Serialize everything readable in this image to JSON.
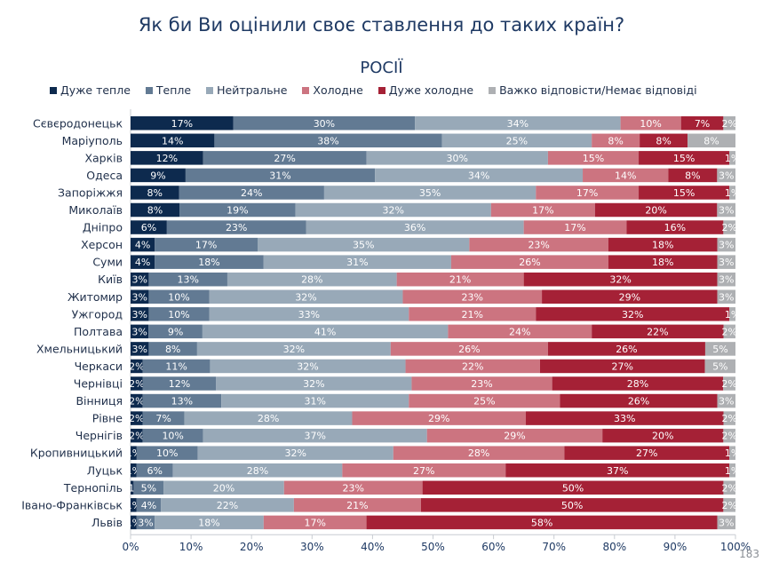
{
  "page_title": "Як би Ви оцінили своє ставлення до таких країн?",
  "page_number": "183",
  "chart_data": {
    "type": "bar",
    "orientation": "horizontal",
    "stacked": true,
    "title": "РОСІЇ",
    "xlim": [
      0,
      100
    ],
    "x_ticks": [
      "0%",
      "10%",
      "20%",
      "30%",
      "40%",
      "50%",
      "60%",
      "70%",
      "80%",
      "90%",
      "100%"
    ],
    "legend_position": "top",
    "series": [
      {
        "name": "Дуже тепле",
        "color": "#0d2a4e"
      },
      {
        "name": "Тепле",
        "color": "#627a93"
      },
      {
        "name": "Нейтральне",
        "color": "#98a9b8"
      },
      {
        "name": "Холодне",
        "color": "#cc7480"
      },
      {
        "name": "Дуже холодне",
        "color": "#a52136"
      },
      {
        "name": "Важко відповісти/Немає відповіді",
        "color": "#aeb0b3"
      }
    ],
    "categories": [
      "Сєвєродонецьк",
      "Маріуполь",
      "Харків",
      "Одеса",
      "Запоріжжя",
      "Миколаїв",
      "Дніпро",
      "Херсон",
      "Суми",
      "Київ",
      "Житомир",
      "Ужгород",
      "Полтава",
      "Хмельницький",
      "Черкаси",
      "Чернівці",
      "Вінниця",
      "Рівне",
      "Чернігів",
      "Кропивницький",
      "Луцьк",
      "Тернопіль",
      "Івано-Франківськ",
      "Львів"
    ],
    "values": [
      [
        17,
        30,
        34,
        10,
        7,
        2
      ],
      [
        14,
        38,
        25,
        8,
        8,
        8
      ],
      [
        12,
        27,
        30,
        15,
        15,
        1
      ],
      [
        9,
        31,
        34,
        14,
        8,
        3
      ],
      [
        8,
        24,
        35,
        17,
        15,
        1
      ],
      [
        8,
        19,
        32,
        17,
        20,
        3
      ],
      [
        6,
        23,
        36,
        17,
        16,
        2
      ],
      [
        4,
        17,
        35,
        23,
        18,
        3
      ],
      [
        4,
        18,
        31,
        26,
        18,
        3
      ],
      [
        3,
        13,
        28,
        21,
        32,
        3
      ],
      [
        3,
        10,
        32,
        23,
        29,
        3
      ],
      [
        3,
        10,
        33,
        21,
        32,
        1
      ],
      [
        3,
        9,
        41,
        24,
        22,
        2
      ],
      [
        3,
        8,
        32,
        26,
        26,
        5
      ],
      [
        2,
        11,
        32,
        22,
        27,
        5
      ],
      [
        2,
        12,
        32,
        23,
        28,
        2
      ],
      [
        2,
        13,
        31,
        25,
        26,
        3
      ],
      [
        2,
        7,
        28,
        29,
        33,
        2
      ],
      [
        2,
        10,
        37,
        29,
        20,
        2
      ],
      [
        1,
        10,
        32,
        28,
        27,
        1
      ],
      [
        1,
        6,
        28,
        27,
        37,
        1
      ],
      [
        0.5,
        5,
        20,
        23,
        50,
        2
      ],
      [
        1,
        4,
        22,
        21,
        50,
        2
      ],
      [
        1,
        3,
        18,
        17,
        58,
        3
      ]
    ],
    "labels": [
      [
        "17%",
        "30%",
        "34%",
        "10%",
        "7%",
        "2%"
      ],
      [
        "14%",
        "38%",
        "25%",
        "8%",
        "8%",
        "8%"
      ],
      [
        "12%",
        "27%",
        "30%",
        "15%",
        "15%",
        "1%"
      ],
      [
        "9%",
        "31%",
        "34%",
        "14%",
        "8%",
        "3%"
      ],
      [
        "8%",
        "24%",
        "35%",
        "17%",
        "15%",
        "1%"
      ],
      [
        "8%",
        "19%",
        "32%",
        "17%",
        "20%",
        "3%"
      ],
      [
        "6%",
        "23%",
        "36%",
        "17%",
        "16%",
        "2%"
      ],
      [
        "4%",
        "17%",
        "35%",
        "23%",
        "18%",
        "3%"
      ],
      [
        "4%",
        "18%",
        "31%",
        "26%",
        "18%",
        "3%"
      ],
      [
        "3%",
        "13%",
        "28%",
        "21%",
        "32%",
        "3%"
      ],
      [
        "3%",
        "10%",
        "32%",
        "23%",
        "29%",
        "3%"
      ],
      [
        "3%",
        "10%",
        "33%",
        "21%",
        "32%",
        "1%"
      ],
      [
        "3%",
        "9%",
        "41%",
        "24%",
        "22%",
        "2%"
      ],
      [
        "3%",
        "8%",
        "32%",
        "26%",
        "26%",
        "5%"
      ],
      [
        "2%",
        "11%",
        "32%",
        "22%",
        "27%",
        "5%"
      ],
      [
        "2%",
        "12%",
        "32%",
        "23%",
        "28%",
        "2%"
      ],
      [
        "2%",
        "13%",
        "31%",
        "25%",
        "26%",
        "3%"
      ],
      [
        "2%",
        "7%",
        "28%",
        "29%",
        "33%",
        "2%"
      ],
      [
        "2%",
        "10%",
        "37%",
        "29%",
        "20%",
        "2%"
      ],
      [
        "1%",
        "10%",
        "32%",
        "28%",
        "27%",
        "1%"
      ],
      [
        "1%",
        "6%",
        "28%",
        "27%",
        "37%",
        "1%"
      ],
      [
        "<1%",
        "5%",
        "20%",
        "23%",
        "50%",
        "2%"
      ],
      [
        "1%",
        "4%",
        "22%",
        "21%",
        "50%",
        "2%"
      ],
      [
        "1%",
        "3%",
        "18%",
        "17%",
        "58%",
        "3%"
      ]
    ]
  }
}
